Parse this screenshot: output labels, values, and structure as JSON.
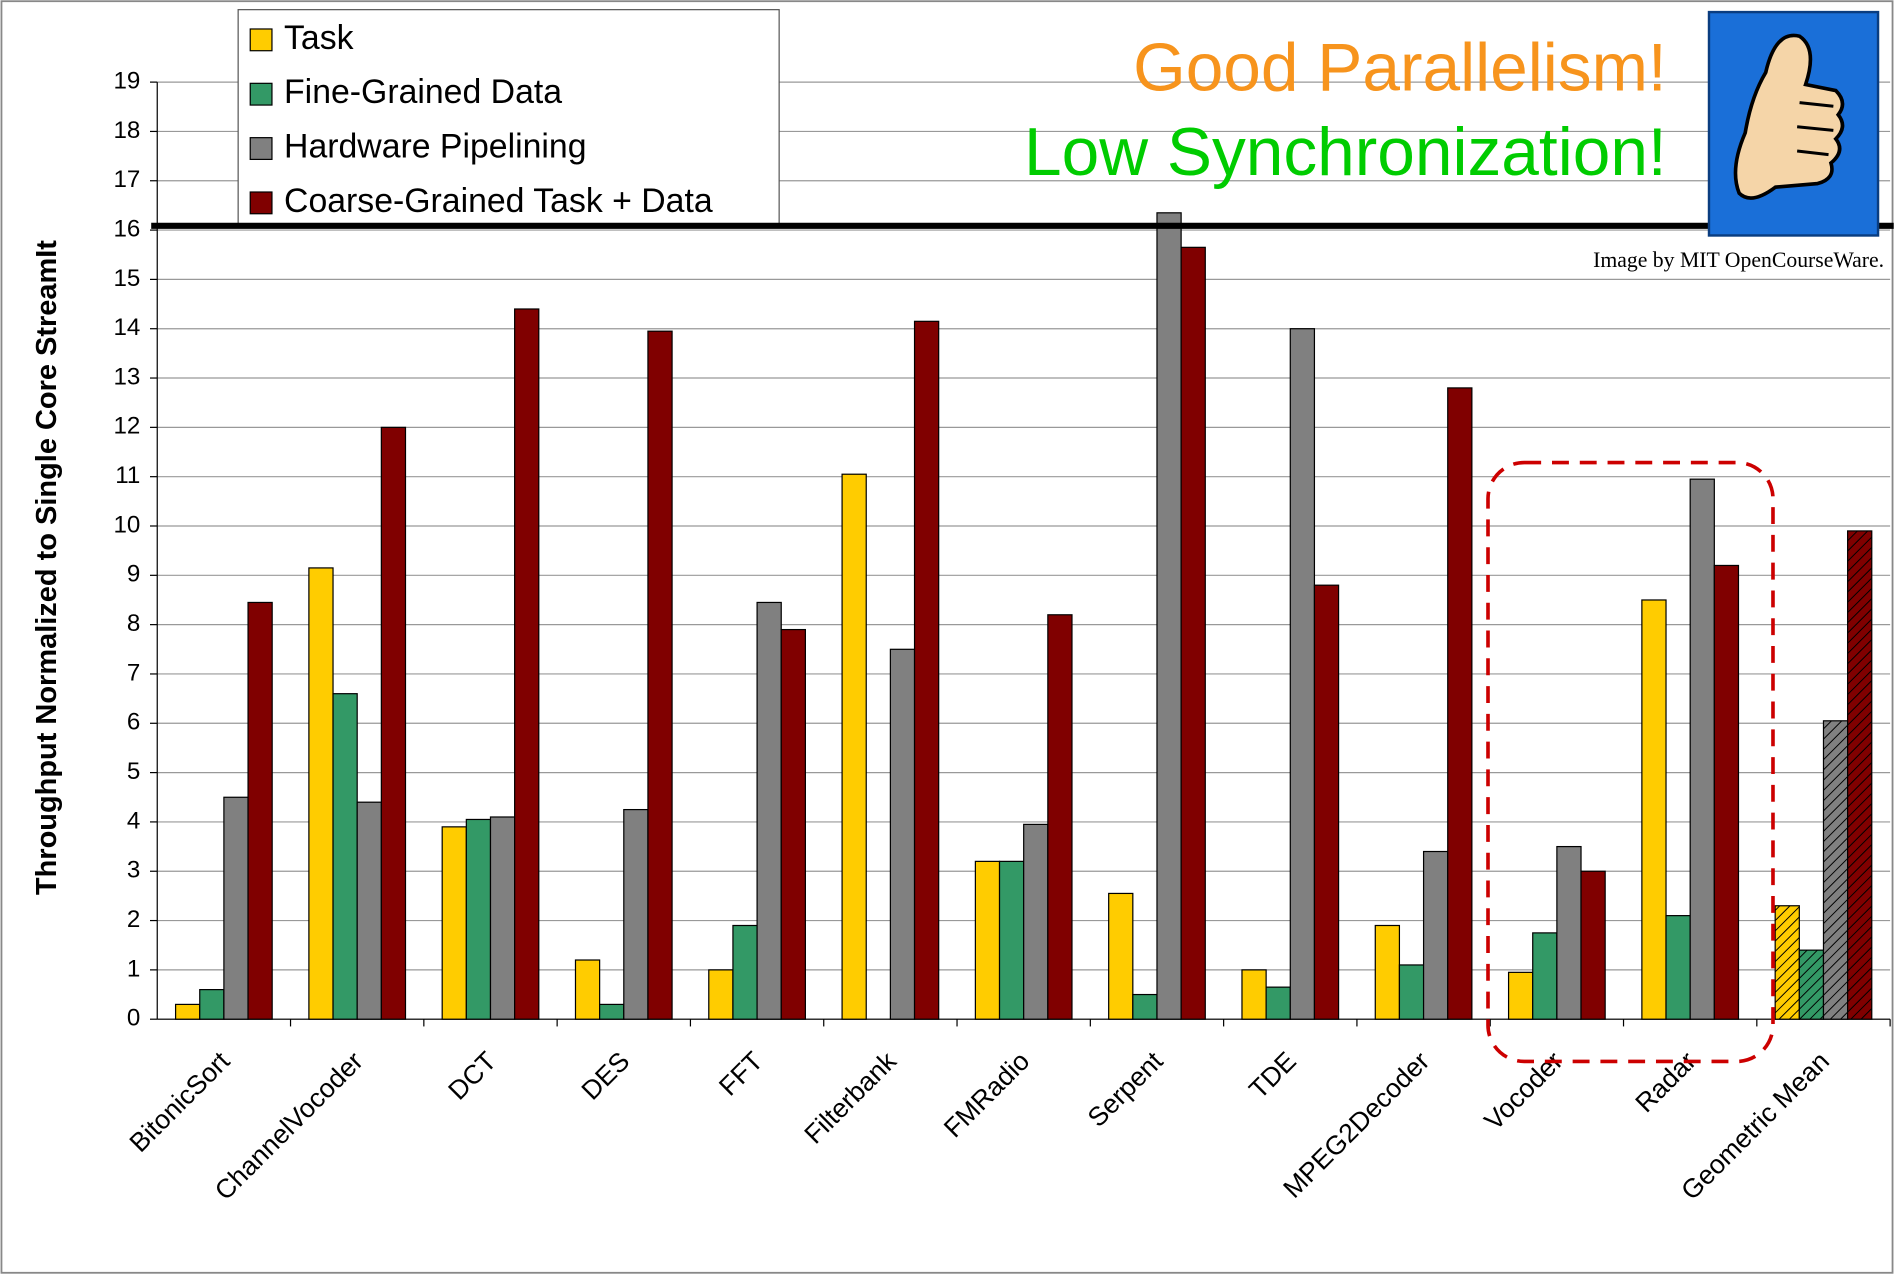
{
  "chart_data": {
    "type": "bar",
    "y_label": "Throughput Normalized to Single Core StreamIt",
    "annotations": [
      "Good Parallelism!",
      "Low Synchronization!",
      "Image by MIT OpenCourseWare."
    ],
    "categories": [
      "BitonicSort",
      "ChannelVocoder",
      "DCT",
      "DES",
      "FFT",
      "Filterbank",
      "FMRadio",
      "Serpent",
      "TDE",
      "MPEG2Decoder",
      "Vocoder",
      "Radar",
      "Geometric Mean"
    ],
    "series": [
      {
        "name": "Task",
        "color": "#ffcc00",
        "values": [
          0.3,
          9.15,
          3.9,
          1.2,
          1.0,
          11.05,
          3.2,
          2.55,
          1.0,
          1.9,
          0.95,
          8.5,
          2.3
        ]
      },
      {
        "name": "Fine-Grained Data",
        "color": "#339966",
        "values": [
          0.6,
          6.6,
          4.05,
          0.3,
          1.9,
          null,
          3.2,
          0.5,
          0.65,
          1.1,
          1.75,
          2.1,
          1.4
        ]
      },
      {
        "name": "Hardware Pipelining",
        "color": "#808080",
        "values": [
          4.5,
          4.4,
          4.1,
          4.25,
          8.45,
          7.5,
          3.95,
          16.35,
          14.0,
          3.4,
          3.5,
          10.95,
          6.05
        ]
      },
      {
        "name": "Coarse-Grained Task + Data",
        "color": "#800000",
        "values": [
          8.45,
          12.0,
          14.4,
          13.95,
          7.9,
          14.15,
          8.2,
          15.65,
          8.8,
          12.8,
          3.0,
          9.2,
          9.9
        ]
      }
    ],
    "ylim": [
      0,
      19
    ],
    "yticks": [
      0,
      1,
      2,
      3,
      4,
      5,
      6,
      7,
      8,
      9,
      10,
      11,
      12,
      13,
      14,
      15,
      16,
      17,
      18,
      19
    ],
    "grid": true
  }
}
